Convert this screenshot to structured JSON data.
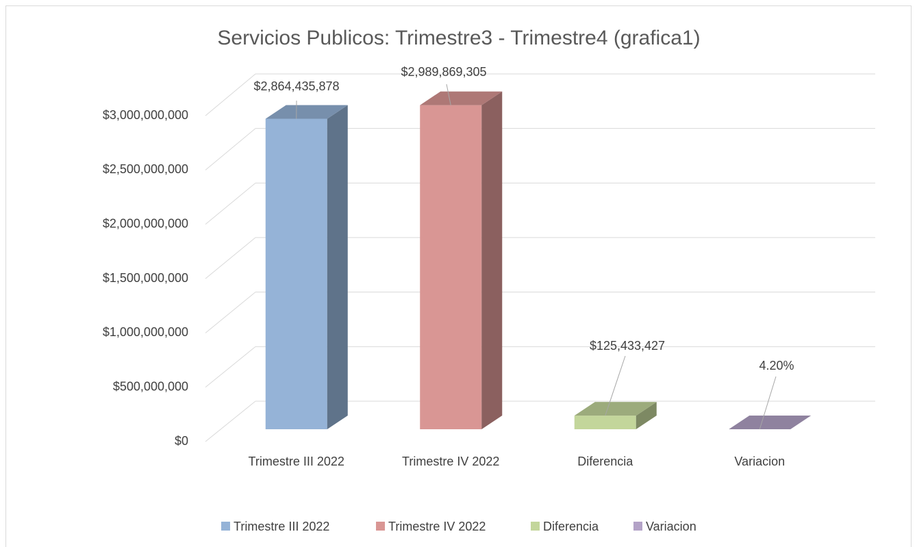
{
  "chart_data": {
    "type": "bar3d",
    "title": "Servicios Publicos: Trimestre3 - Trimestre4    (grafica1)",
    "categories": [
      "Trimestre III 2022",
      "Trimestre IV 2022",
      "Diferencia",
      "Variacion"
    ],
    "series": [
      {
        "name": "Trimestre III 2022",
        "color": "#95b3d7",
        "values": [
          2864435878,
          null,
          null,
          null
        ],
        "value_labels": [
          "$2,864,435,878",
          null,
          null,
          null
        ]
      },
      {
        "name": "Trimestre IV 2022",
        "color": "#d99694",
        "values": [
          null,
          2989869305,
          null,
          null
        ],
        "value_labels": [
          null,
          "$2,989,869,305",
          null,
          null
        ]
      },
      {
        "name": "Diferencia",
        "color": "#c3d69b",
        "values": [
          null,
          null,
          125433427,
          null
        ],
        "value_labels": [
          null,
          null,
          "$125,433,427",
          null
        ]
      },
      {
        "name": "Variacion",
        "color": "#b3a2c7",
        "values": [
          null,
          null,
          null,
          0.042
        ],
        "value_labels": [
          null,
          null,
          null,
          "4.20%"
        ]
      }
    ],
    "ylim": [
      0,
      3000000000
    ],
    "yticks": [
      {
        "value": 0,
        "label": "$0"
      },
      {
        "value": 500000000,
        "label": "$500,000,000"
      },
      {
        "value": 1000000000,
        "label": "$1,000,000,000"
      },
      {
        "value": 1500000000,
        "label": "$1,500,000,000"
      },
      {
        "value": 2000000000,
        "label": "$2,000,000,000"
      },
      {
        "value": 2500000000,
        "label": "$2,500,000,000"
      },
      {
        "value": 3000000000,
        "label": "$3,000,000,000"
      }
    ],
    "grid": true,
    "legend": "bottom"
  }
}
